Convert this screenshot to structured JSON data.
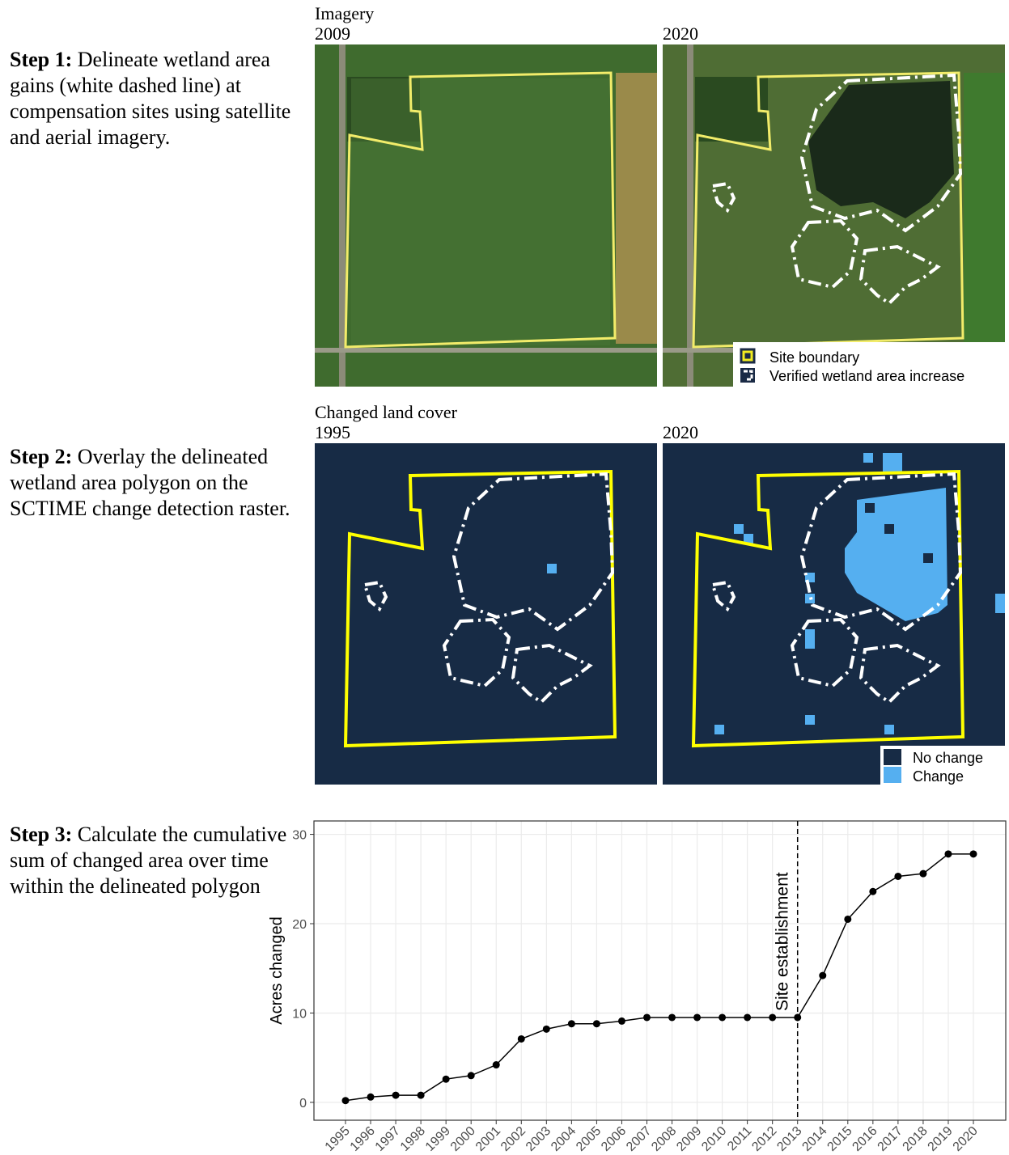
{
  "steps": [
    {
      "label": "Step 1:",
      "text": "Delineate wetland area gains (white dashed line) at compensation sites using satellite and aerial imagery."
    },
    {
      "label": "Step 2:",
      "text": "Overlay the delineated wetland area polygon on the SCTIME change detection raster."
    },
    {
      "label": "Step 3:",
      "text": "Calculate the cumulative sum of changed area over time within the delineated polygon"
    }
  ],
  "imagery": {
    "title": "Imagery",
    "panels": [
      "2009",
      "2020"
    ],
    "legend": [
      "Site boundary",
      "Verified wetland area increase"
    ]
  },
  "land_cover": {
    "title": "Changed land cover",
    "panels": [
      "1995",
      "2020"
    ],
    "legend": [
      "No change",
      "Change"
    ]
  },
  "chart_data": {
    "type": "line",
    "y_label": "Acres changed",
    "categories": [
      "1995",
      "1996",
      "1997",
      "1998",
      "1999",
      "2000",
      "2001",
      "2002",
      "2003",
      "2004",
      "2005",
      "2006",
      "2007",
      "2008",
      "2009",
      "2010",
      "2011",
      "2012",
      "2013",
      "2014",
      "2015",
      "2016",
      "2017",
      "2018",
      "2019",
      "2020"
    ],
    "values": [
      0.2,
      0.6,
      0.8,
      0.8,
      2.6,
      3.0,
      4.2,
      7.1,
      8.2,
      8.8,
      8.8,
      9.1,
      9.5,
      9.5,
      9.5,
      9.5,
      9.5,
      9.5,
      9.5,
      14.2,
      20.5,
      23.6,
      25.3,
      25.6,
      27.8,
      27.8
    ],
    "color": "#000000",
    "ylim": [
      -2,
      31.5
    ],
    "yticks": [
      0,
      10,
      20,
      30
    ],
    "grid": true,
    "annotation": {
      "category": "2013",
      "text": "Site establishment"
    }
  }
}
